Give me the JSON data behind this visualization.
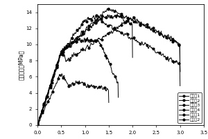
{
  "title": "",
  "ylabel": "拉伸应力（MPa）",
  "xlabel": "",
  "xlim": [
    0.0,
    3.5
  ],
  "ylim": [
    0,
    15
  ],
  "xticks": [
    0.0,
    0.5,
    1.0,
    1.5,
    2.0,
    2.5,
    3.0,
    3.5
  ],
  "yticks": [
    0,
    2,
    4,
    6,
    8,
    10,
    12,
    14
  ],
  "legend_labels": [
    "实施例1",
    "实施例2",
    "实施例3",
    "实施例4",
    "对比例1",
    "对比例2"
  ],
  "background_color": "#ffffff",
  "marker_every": 18
}
